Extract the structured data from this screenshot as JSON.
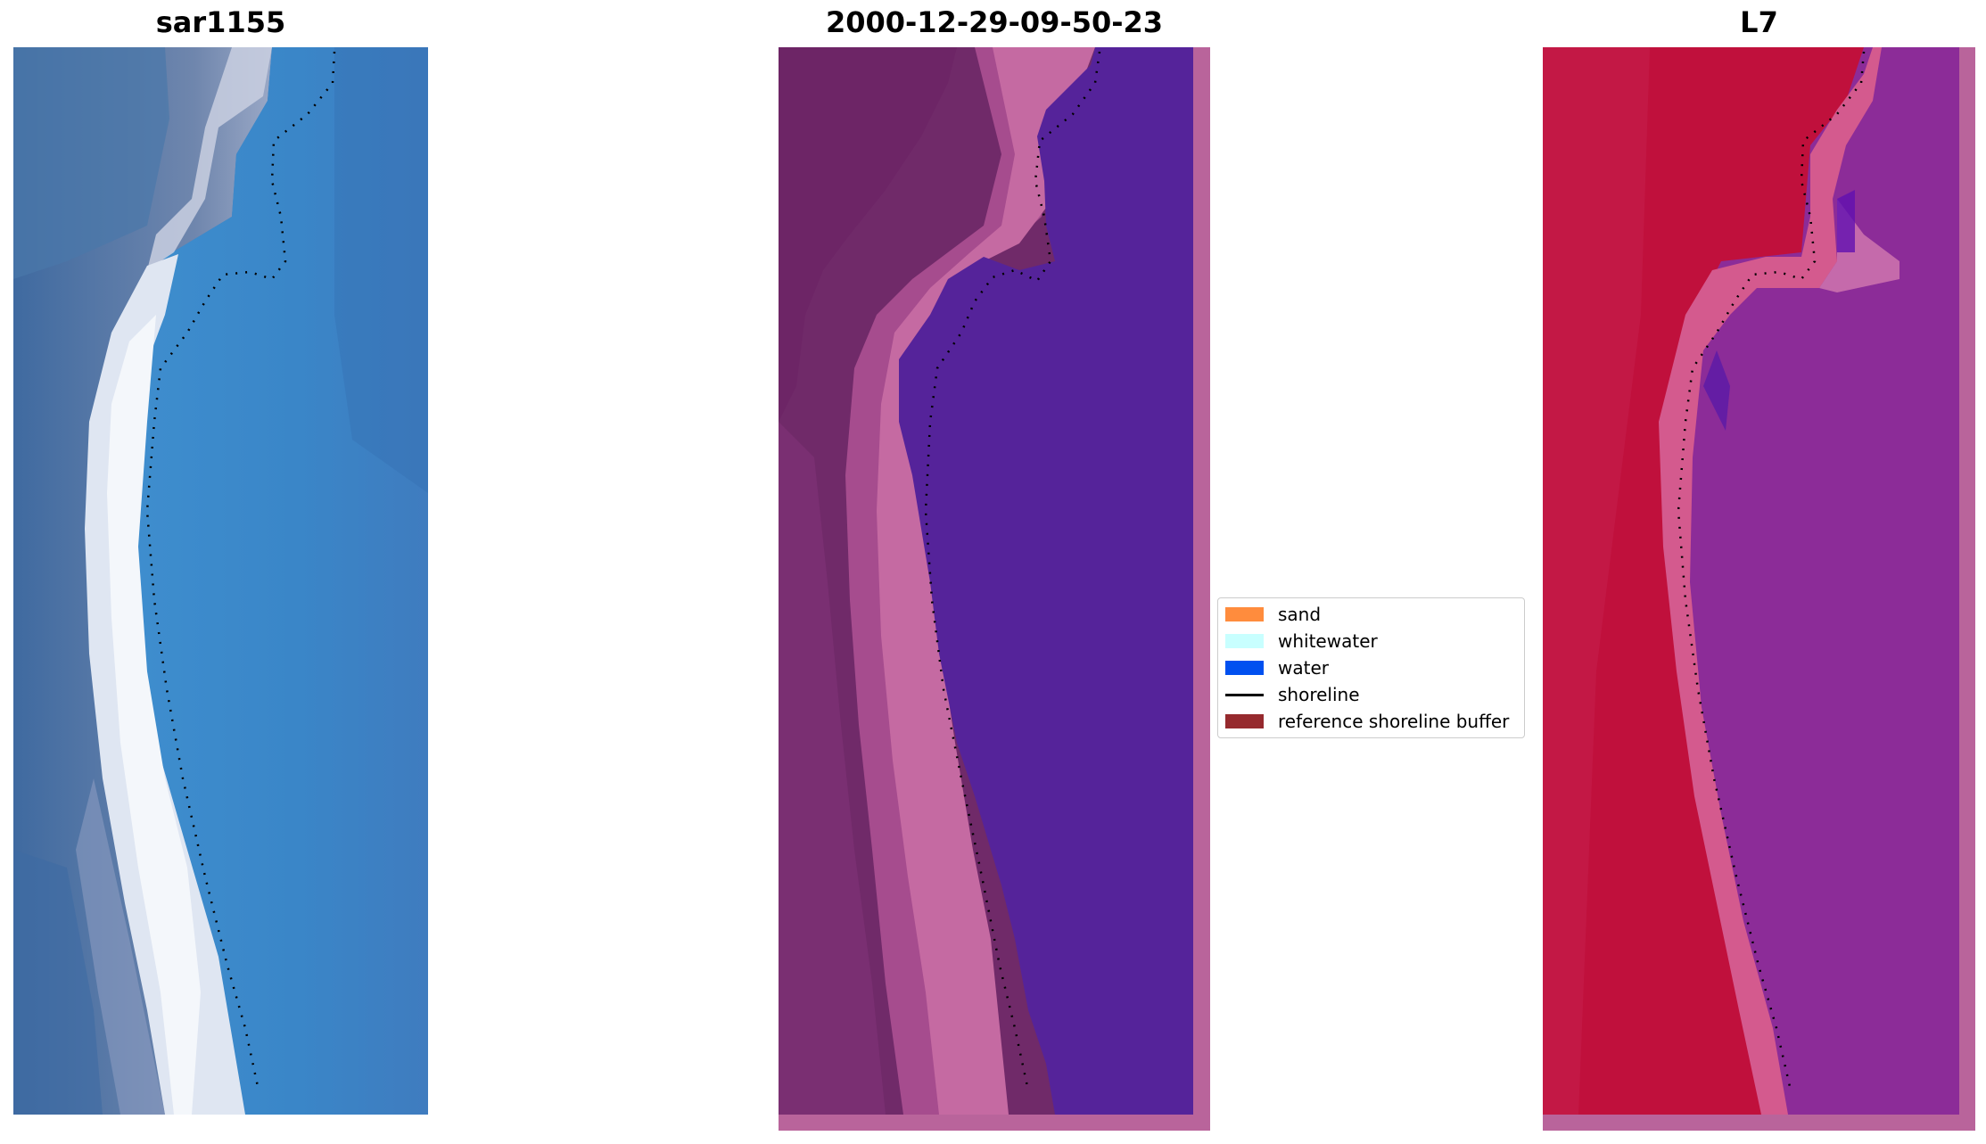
{
  "panels": {
    "left_title": "sar1155",
    "middle_title": "2000-12-29-09-50-23",
    "right_title": "L7"
  },
  "legend": {
    "items": [
      {
        "label": "sand",
        "color": "#ff8c3d",
        "kind": "patch"
      },
      {
        "label": "whitewater",
        "color": "#c8ffff",
        "kind": "patch"
      },
      {
        "label": "water",
        "color": "#0050f0",
        "kind": "patch"
      },
      {
        "label": "shoreline",
        "color": "#000000",
        "kind": "line"
      },
      {
        "label": "reference shoreline buffer",
        "color": "#962a2e",
        "kind": "patch"
      }
    ]
  }
}
